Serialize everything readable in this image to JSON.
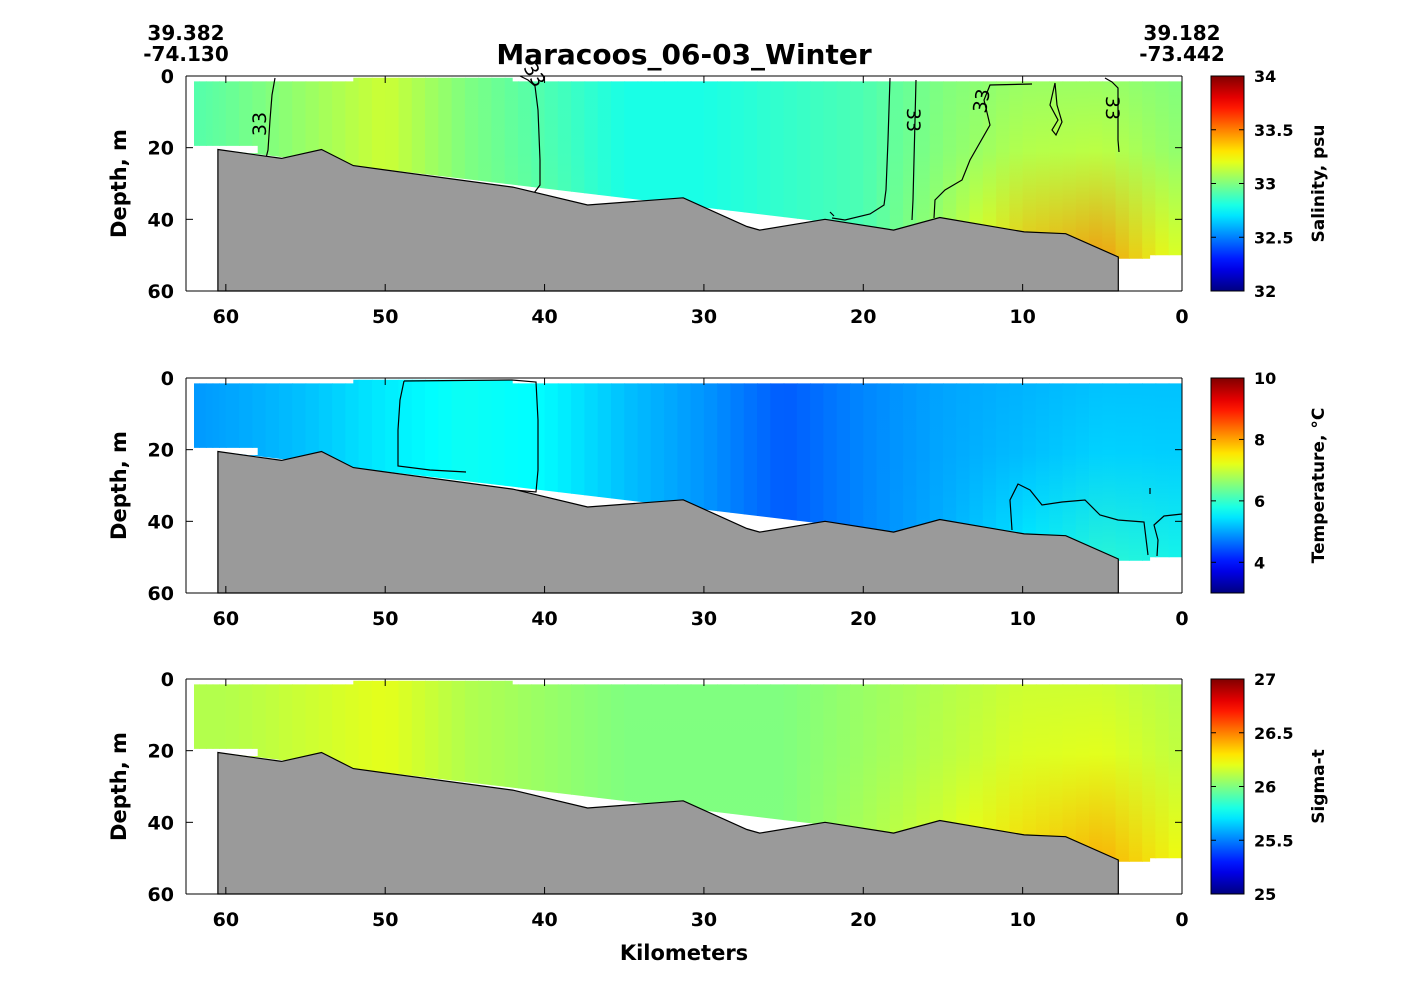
{
  "title": "Maracoos_06-03_Winter",
  "coords": {
    "left_lat": "39.382",
    "left_lon": "-74.130",
    "right_lat": "39.182",
    "right_lon": "-73.442"
  },
  "chart_data": {
    "type": "heatmap",
    "title": "Maracoos_06-03_Winter",
    "xlabel": "Kilometers",
    "xlim": [
      62.5,
      0
    ],
    "x_ticks": [
      60,
      50,
      40,
      30,
      20,
      10,
      0
    ],
    "ylim": [
      60,
      0
    ],
    "y_ticks": [
      0,
      20,
      40,
      60
    ],
    "x_reversed": true,
    "grid": false,
    "bathymetry": {
      "name": "seafloor",
      "x_km": [
        60.5,
        56.5,
        54.0,
        52.0,
        42.0,
        37.3,
        31.3,
        27.3,
        26.5,
        22.4,
        18.1,
        15.2,
        9.9,
        7.3,
        4.0
      ],
      "depth_m": [
        20.5,
        23.0,
        20.5,
        25.0,
        31.0,
        36.0,
        34.0,
        42.0,
        43.0,
        40.0,
        43.0,
        39.5,
        43.5,
        44.0,
        50.5
      ]
    },
    "panels": [
      {
        "variable": "salinity",
        "ylabel": "Depth, m",
        "colorbar_label": "Salinity, psu",
        "clim": [
          32,
          34
        ],
        "cbar_ticks": [
          "32",
          "32.5",
          "33",
          "33.5",
          "34"
        ],
        "contour_label": "33",
        "columns": [
          {
            "x": 62.5,
            "surface": 32.9,
            "bottom": 32.95
          },
          {
            "x": 60.0,
            "surface": 32.95,
            "bottom": 32.95
          },
          {
            "x": 55.0,
            "surface": 33.05,
            "bottom": 33.05
          },
          {
            "x": 50.0,
            "surface": 33.15,
            "bottom": 33.15
          },
          {
            "x": 45.0,
            "surface": 33.0,
            "bottom": 33.0
          },
          {
            "x": 40.0,
            "surface": 32.9,
            "bottom": 32.95
          },
          {
            "x": 35.0,
            "surface": 32.8,
            "bottom": 32.8
          },
          {
            "x": 30.0,
            "surface": 32.8,
            "bottom": 32.8
          },
          {
            "x": 25.0,
            "surface": 32.85,
            "bottom": 32.85
          },
          {
            "x": 20.0,
            "surface": 32.9,
            "bottom": 32.9
          },
          {
            "x": 15.0,
            "surface": 33.0,
            "bottom": 33.1
          },
          {
            "x": 10.0,
            "surface": 33.05,
            "bottom": 33.4
          },
          {
            "x": 5.0,
            "surface": 33.05,
            "bottom": 33.5
          },
          {
            "x": 0.0,
            "surface": 33.0,
            "bottom": 33.2
          }
        ]
      },
      {
        "variable": "temperature",
        "ylabel": "Depth, m",
        "colorbar_label": "Temperature, °C",
        "clim": [
          3,
          10
        ],
        "cbar_ticks": [
          "4",
          "6",
          "8",
          "10"
        ],
        "columns": [
          {
            "x": 62.5,
            "surface": 4.9,
            "bottom": 4.9
          },
          {
            "x": 60.0,
            "surface": 5.0,
            "bottom": 5.0
          },
          {
            "x": 55.0,
            "surface": 5.2,
            "bottom": 5.2
          },
          {
            "x": 50.0,
            "surface": 5.5,
            "bottom": 5.5
          },
          {
            "x": 45.0,
            "surface": 5.7,
            "bottom": 5.7
          },
          {
            "x": 40.0,
            "surface": 5.6,
            "bottom": 5.6
          },
          {
            "x": 35.0,
            "surface": 5.2,
            "bottom": 5.2
          },
          {
            "x": 30.0,
            "surface": 4.9,
            "bottom": 4.9
          },
          {
            "x": 25.0,
            "surface": 4.5,
            "bottom": 4.5
          },
          {
            "x": 20.0,
            "surface": 4.8,
            "bottom": 4.8
          },
          {
            "x": 15.0,
            "surface": 5.0,
            "bottom": 5.1
          },
          {
            "x": 10.0,
            "surface": 5.1,
            "bottom": 5.6
          },
          {
            "x": 5.0,
            "surface": 5.2,
            "bottom": 6.0
          },
          {
            "x": 0.0,
            "surface": 5.2,
            "bottom": 5.8
          }
        ]
      },
      {
        "variable": "sigma-t",
        "ylabel": "Depth, m",
        "colorbar_label": "Sigma-t",
        "clim": [
          25,
          27
        ],
        "cbar_ticks": [
          "25",
          "25.5",
          "26",
          "26.5",
          "27"
        ],
        "columns": [
          {
            "x": 62.5,
            "surface": 26.1,
            "bottom": 26.1
          },
          {
            "x": 60.0,
            "surface": 26.1,
            "bottom": 26.1
          },
          {
            "x": 55.0,
            "surface": 26.15,
            "bottom": 26.15
          },
          {
            "x": 50.0,
            "surface": 26.2,
            "bottom": 26.2
          },
          {
            "x": 45.0,
            "surface": 26.1,
            "bottom": 26.1
          },
          {
            "x": 40.0,
            "surface": 26.05,
            "bottom": 26.05
          },
          {
            "x": 35.0,
            "surface": 26.0,
            "bottom": 26.0
          },
          {
            "x": 30.0,
            "surface": 26.0,
            "bottom": 26.0
          },
          {
            "x": 25.0,
            "surface": 26.0,
            "bottom": 26.0
          },
          {
            "x": 20.0,
            "surface": 26.05,
            "bottom": 26.1
          },
          {
            "x": 15.0,
            "surface": 26.1,
            "bottom": 26.2
          },
          {
            "x": 10.0,
            "surface": 26.15,
            "bottom": 26.35
          },
          {
            "x": 5.0,
            "surface": 26.15,
            "bottom": 26.45
          },
          {
            "x": 0.0,
            "surface": 26.1,
            "bottom": 26.25
          }
        ]
      }
    ]
  },
  "colors": {
    "bathymetry_fill": "#9a9a9a",
    "axes": "#000000",
    "background": "#ffffff"
  }
}
